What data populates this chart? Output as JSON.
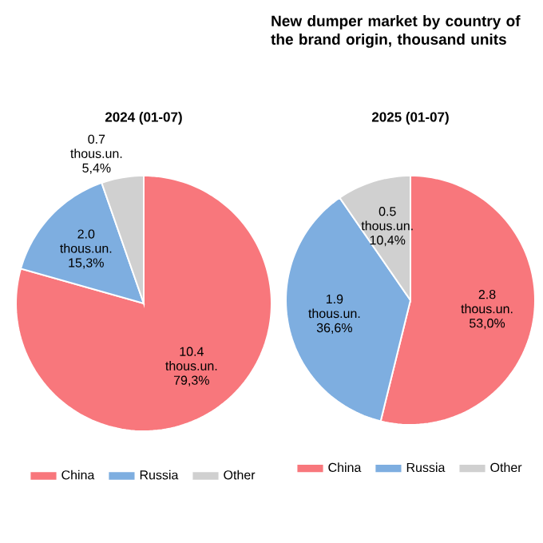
{
  "chart_data": [
    {
      "type": "pie",
      "subtitle": "2024 (01-07)",
      "categories": [
        "China",
        "Russia",
        "Other"
      ],
      "values": [
        10.4,
        2.0,
        0.7
      ],
      "colors": [
        "#f8777c",
        "#7eaee0",
        "#d0d0d0"
      ],
      "value_labels": [
        "10.4 thous.un. 79,3%",
        "2.0 thous.un. 15,3%",
        "0.7 thous.un. 5,4%"
      ],
      "legend": "bottom"
    },
    {
      "type": "pie",
      "title": "New dumper market by country of the brand origin, thousand units",
      "subtitle": "2025 (01-07)",
      "categories": [
        "China",
        "Russia",
        "Other"
      ],
      "values": [
        2.8,
        1.9,
        0.5
      ],
      "colors": [
        "#f8777c",
        "#7eaee0",
        "#d0d0d0"
      ],
      "value_labels": [
        "2.8 thous.un. 53,0%",
        "1.9 thous.un. 36,6%",
        "0.5 thous.un. 10,4%"
      ],
      "legend": "bottom"
    }
  ]
}
